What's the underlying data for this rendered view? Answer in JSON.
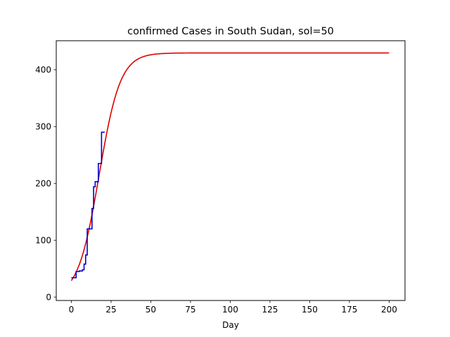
{
  "chart_data": {
    "type": "line",
    "title": "confirmed Cases in South Sudan, sol=50",
    "xlabel": "Day",
    "ylabel": "",
    "xlim": [
      -9.5,
      210
    ],
    "ylim": [
      -6,
      451
    ],
    "xticks": [
      0,
      25,
      50,
      75,
      100,
      125,
      150,
      175,
      200
    ],
    "yticks": [
      0,
      100,
      200,
      300,
      400
    ],
    "grid": false,
    "colors": {
      "observed": "#0000cc",
      "fitted": "#dd0000"
    },
    "series": [
      {
        "key": "observed",
        "style": "step",
        "x": [
          0,
          1,
          2,
          3,
          4,
          5,
          6,
          7,
          8,
          9,
          10,
          11,
          12,
          13,
          14,
          15,
          16,
          17,
          18,
          19,
          20,
          21
        ],
        "y": [
          34,
          34,
          34,
          45,
          45,
          46,
          46,
          48,
          58,
          74,
          120,
          120,
          120,
          156,
          194,
          203,
          203,
          235,
          235,
          290,
          290,
          290
        ]
      },
      {
        "key": "fitted",
        "style": "logistic",
        "K": 429.5,
        "r": 0.15,
        "x0": 17.5,
        "x_from": 0,
        "x_to": 200
      }
    ]
  }
}
